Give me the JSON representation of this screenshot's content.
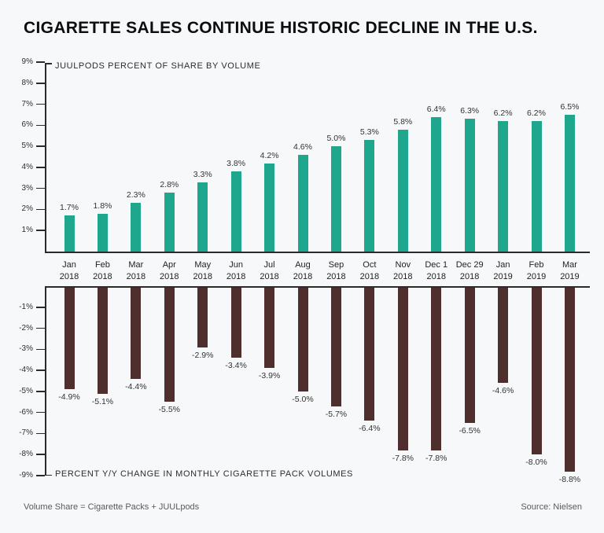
{
  "title": "CIGARETTE SALES CONTINUE HISTORIC DECLINE IN THE U.S.",
  "footer": {
    "left": "Volume Share = Cigarette Packs + JUULpods",
    "right": "Source: Nielsen"
  },
  "colors": {
    "background": "#F7F8FA",
    "juul_bar": "#1EA78C",
    "cig_bar": "#4F2F2E",
    "axis": "#2B2B2B",
    "tick_text": "#2E2E2E",
    "footer_text": "#5A5A5A"
  },
  "chart_data": [
    {
      "type": "bar",
      "title": "JUULPODS PERCENT OF SHARE BY VOLUME",
      "categories": [
        "Jan 2018",
        "Feb 2018",
        "Mar 2018",
        "Apr 2018",
        "May 2018",
        "Jun 2018",
        "Jul 2018",
        "Aug 2018",
        "Sep 2018",
        "Oct 2018",
        "Nov 2018",
        "Dec 1 2018",
        "Dec 29 2018",
        "Jan 2019",
        "Feb 2019",
        "Mar 2019"
      ],
      "values": [
        1.7,
        1.8,
        2.3,
        2.8,
        3.3,
        3.8,
        4.2,
        4.6,
        5.0,
        5.3,
        5.8,
        6.4,
        6.3,
        6.2,
        6.2,
        6.5
      ],
      "value_labels": [
        "1.7%",
        "1.8%",
        "2.3%",
        "2.8%",
        "3.3%",
        "3.8%",
        "4.2%",
        "4.6%",
        "5.0%",
        "5.3%",
        "5.8%",
        "6.4%",
        "6.3%",
        "6.2%",
        "6.2%",
        "6.5%"
      ],
      "y_ticks": [
        "9%",
        "8%",
        "7%",
        "6%",
        "5%",
        "4%",
        "3%",
        "2%",
        "1%"
      ],
      "ylim": [
        0,
        9
      ],
      "grid": false,
      "legend": "none",
      "value_label_position": "above",
      "bar_color": "#1EA78C"
    },
    {
      "type": "bar",
      "title": "PERCENT Y/Y CHANGE IN MONTHLY CIGARETTE PACK VOLUMES",
      "categories": [
        "Jan 2018",
        "Feb 2018",
        "Mar 2018",
        "Apr 2018",
        "May 2018",
        "Jun 2018",
        "Jul 2018",
        "Aug 2018",
        "Sep 2018",
        "Oct 2018",
        "Nov 2018",
        "Dec 1 2018",
        "Dec 29 2018",
        "Jan 2019",
        "Feb 2019",
        "Mar 2019"
      ],
      "values": [
        -4.9,
        -5.1,
        -4.4,
        -5.5,
        -2.9,
        -3.4,
        -3.9,
        -5.0,
        -5.7,
        -6.4,
        -7.8,
        -7.8,
        -6.5,
        -4.6,
        -8.0,
        -8.8
      ],
      "value_labels": [
        "-4.9%",
        "-5.1%",
        "-4.4%",
        "-5.5%",
        "-2.9%",
        "-3.4%",
        "-3.9%",
        "-5.0%",
        "-5.7%",
        "-6.4%",
        "-7.8%",
        "-7.8%",
        "-6.5%",
        "-4.6%",
        "-8.0%",
        "-8.8%"
      ],
      "y_ticks": [
        "-1%",
        "-2%",
        "-3%",
        "-4%",
        "-5%",
        "-6%",
        "-7%",
        "-8%",
        "-9%"
      ],
      "ylim": [
        -9,
        0
      ],
      "grid": false,
      "legend": "none",
      "value_label_position": "below",
      "bar_color": "#4F2F2E"
    }
  ]
}
